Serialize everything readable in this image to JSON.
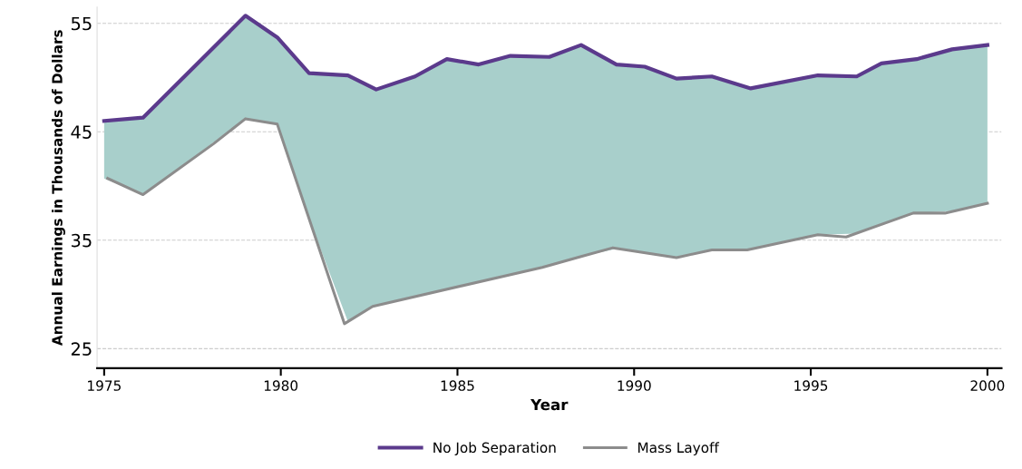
{
  "chart_data": {
    "type": "line",
    "xlabel": "Year",
    "ylabel": "Annual Earnings in Thousands of Dollars",
    "xlim": [
      1974.8,
      2000.4
    ],
    "xticks": [
      1975,
      1980,
      1985,
      1990,
      1995,
      2000
    ],
    "ylim": [
      23.2,
      56.5
    ],
    "yticks": [
      25,
      35,
      45,
      55
    ],
    "grid": "y",
    "legend": "bottom",
    "line_style": "solid",
    "marker": "none",
    "series": [
      {
        "name": "No Job Separation",
        "color": "#5b3a8c",
        "x": [
          1975.0,
          1976.1,
          1979.0,
          1979.9,
          1980.8,
          1981.9,
          1982.7,
          1983.8,
          1984.7,
          1985.6,
          1986.5,
          1987.6,
          1988.5,
          1989.5,
          1990.3,
          1991.2,
          1992.2,
          1993.3,
          1995.2,
          1996.3,
          1997.0,
          1998.0,
          1999.0,
          2000.0
        ],
        "values": [
          46.0,
          46.3,
          55.7,
          53.7,
          50.4,
          50.2,
          48.9,
          50.1,
          51.7,
          51.2,
          52.0,
          51.9,
          53.0,
          51.2,
          51.0,
          49.9,
          50.1,
          49.0,
          50.2,
          50.1,
          51.3,
          51.7,
          52.6,
          53.0
        ],
        "lower": [
          40.7,
          39.2,
          46.2,
          45.7,
          37.0,
          27.5,
          29.0,
          29.8,
          30.5,
          31.2,
          31.8,
          32.7,
          33.5,
          34.2,
          33.8,
          33.4,
          34.1,
          34.2,
          35.5,
          35.6,
          36.5,
          37.5,
          37.7,
          38.4
        ],
        "upper": [
          46.0,
          46.3,
          55.7,
          53.7,
          50.4,
          50.2,
          48.9,
          50.1,
          51.7,
          51.2,
          52.0,
          51.9,
          53.0,
          51.2,
          51.0,
          49.9,
          50.1,
          49.0,
          50.2,
          50.1,
          51.3,
          51.7,
          52.6,
          53.0
        ]
      },
      {
        "name": "Mass Layoff",
        "color": "#8c8c8c",
        "x": [
          1975.1,
          1976.1,
          1978.1,
          1979.0,
          1979.9,
          1981.8,
          1982.6,
          1987.4,
          1988.5,
          1989.4,
          1991.2,
          1992.2,
          1993.2,
          1995.2,
          1996.0,
          1997.9,
          1998.8,
          2000.0
        ],
        "values": [
          40.7,
          39.2,
          43.9,
          46.2,
          45.7,
          27.3,
          28.9,
          32.5,
          33.5,
          34.3,
          33.4,
          34.1,
          34.1,
          35.5,
          35.3,
          37.5,
          37.5,
          38.4
        ]
      }
    ]
  }
}
